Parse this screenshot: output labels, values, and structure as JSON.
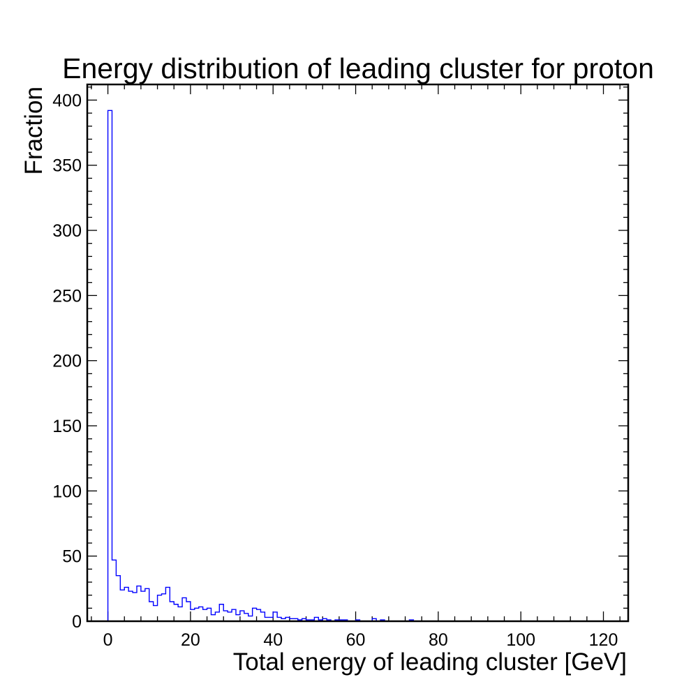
{
  "chart_data": {
    "type": "histogram",
    "title": "Energy distribution of leading cluster for proton",
    "xlabel": "Total energy of leading cluster [GeV]",
    "ylabel": "Fraction",
    "xlim": [
      -5,
      126
    ],
    "ylim": [
      0,
      412
    ],
    "xticks": [
      0,
      20,
      40,
      60,
      80,
      100,
      120
    ],
    "yticks": [
      0,
      50,
      100,
      150,
      200,
      250,
      300,
      350,
      400
    ],
    "grid": false,
    "line_color": "#0000ff",
    "bin_start": 0,
    "bin_width": 1,
    "values": [
      392,
      47,
      35,
      24,
      26,
      23,
      22,
      27,
      23,
      25,
      15,
      12,
      20,
      21,
      26,
      15,
      13,
      11,
      18,
      15,
      9,
      10,
      11,
      9,
      10,
      5,
      7,
      13,
      8,
      7,
      9,
      5,
      8,
      6,
      4,
      10,
      9,
      7,
      3,
      3,
      7,
      3,
      2,
      3,
      2,
      2,
      1,
      2,
      1,
      1,
      3,
      1,
      2,
      1,
      0,
      1,
      1,
      1,
      0,
      0,
      1,
      0,
      0,
      0,
      2,
      0,
      1,
      0,
      0,
      0,
      0,
      0,
      0,
      1,
      0,
      0,
      0,
      0,
      0,
      0,
      0,
      0,
      0,
      0,
      0,
      0,
      0,
      0,
      0,
      0,
      0,
      0,
      0,
      0,
      0,
      0,
      0,
      0,
      0,
      0,
      0,
      0,
      0,
      0,
      0,
      0,
      0,
      0,
      0,
      0,
      0,
      0,
      0,
      0,
      0,
      0,
      0,
      0,
      0,
      0
    ]
  }
}
